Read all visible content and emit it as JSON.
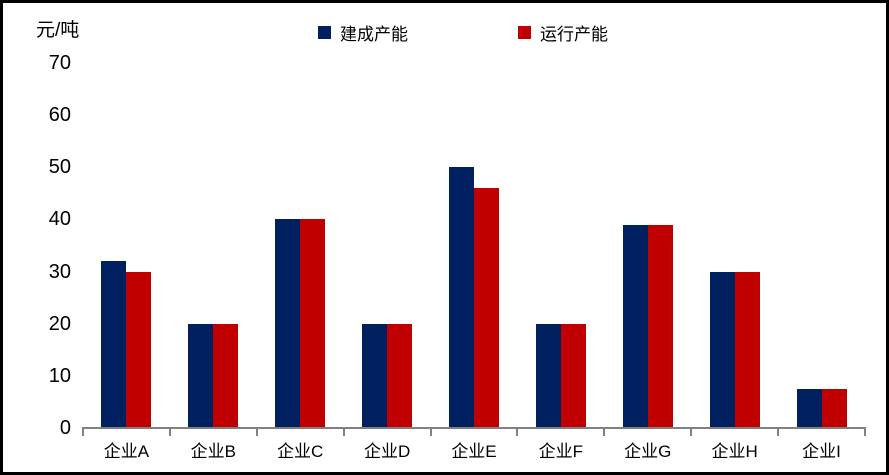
{
  "chart_data": {
    "type": "bar",
    "unit_label": "元/吨",
    "categories": [
      "企业A",
      "企业B",
      "企业C",
      "企业D",
      "企业E",
      "企业F",
      "企业G",
      "企业H",
      "企业I"
    ],
    "series": [
      {
        "name": "建成产能",
        "color": "#002060",
        "values": [
          32,
          20,
          40,
          20,
          50,
          20,
          39,
          30,
          7.5
        ]
      },
      {
        "name": "运行产能",
        "color": "#C00000",
        "values": [
          30,
          20,
          40,
          20,
          46,
          20,
          39,
          30,
          7.5
        ]
      }
    ],
    "ylim": [
      0,
      70
    ],
    "yticks": [
      0,
      10,
      20,
      30,
      40,
      50,
      60,
      70
    ],
    "legend_position": "top",
    "grid": false,
    "axis_color": "#808080",
    "text_color": "#000000",
    "background_color": "#ffffff",
    "frame_color": "#000000"
  }
}
